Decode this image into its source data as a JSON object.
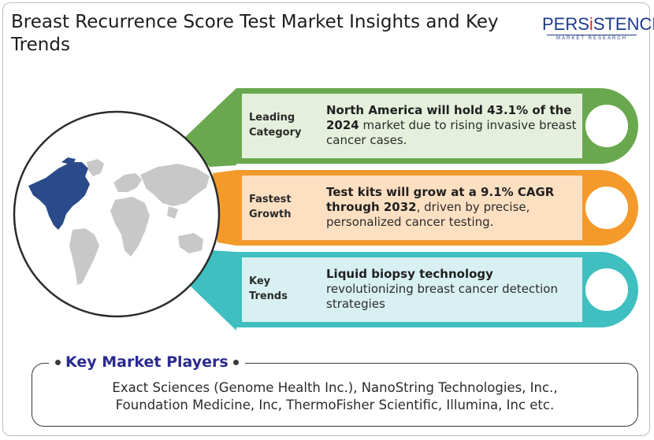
{
  "header": {
    "title": "Breast Recurrence Score Test Market Insights and Key Trends",
    "logo_main_a": "PERS",
    "logo_main_i": "i",
    "logo_main_b": "STENCE",
    "logo_sub": "MARKET RESEARCH"
  },
  "colors": {
    "green": "#6aa84f",
    "green_fill": "#e4f0dc",
    "orange": "#f39a2b",
    "orange_fill": "#fde0c2",
    "teal": "#3fbfbf",
    "teal_fill": "#d9f0f2",
    "highlight": "#2a4a8a",
    "map_gray": "#c8c8c8"
  },
  "insights": [
    {
      "label_line1": "Leading",
      "label_line2": "Category",
      "bold_text": "North America will hold 43.1% of the 2024",
      "text": " market due to rising invasive breast cancer cases."
    },
    {
      "label_line1": "Fastest",
      "label_line2": "Growth",
      "bold_text": "Test kits will grow at a 9.1% CAGR through 2032",
      "text": ", driven by precise, personalized cancer testing."
    },
    {
      "label_line1": "Key",
      "label_line2": "Trends",
      "bold_text": "Liquid biopsy technology",
      "text": " revolutionizing breast cancer detection strategies"
    }
  ],
  "players": {
    "title": "Key Market Players",
    "line1": "Exact Sciences (Genome Health Inc.), NanoString Technologies, Inc.,",
    "line2": "Foundation Medicine, Inc, ThermoFisher Scientific, Illumina, Inc etc."
  }
}
